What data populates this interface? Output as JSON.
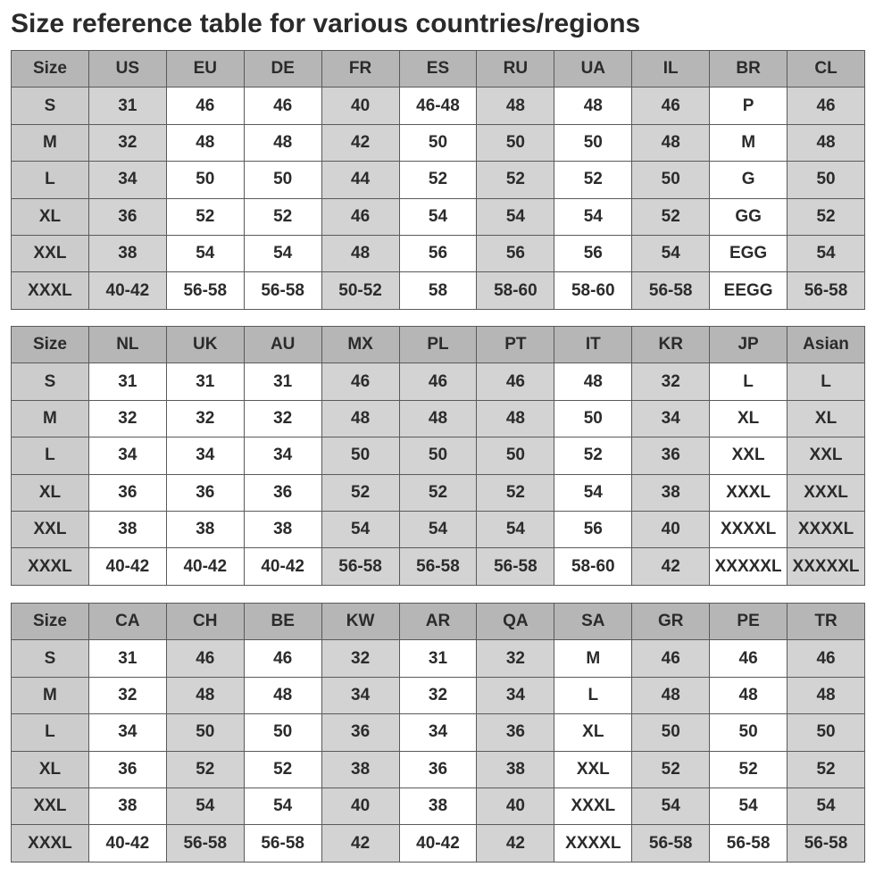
{
  "title": "Size reference table for various countries/regions",
  "colors": {
    "header_cell": "#b6b6b6",
    "gray_cell": "#d3d3d3",
    "white_cell": "#ffffff",
    "border": "#5a5a5a",
    "text": "#2b2b2b"
  },
  "tables": [
    {
      "columns": [
        "Size",
        "US",
        "EU",
        "DE",
        "FR",
        "ES",
        "RU",
        "UA",
        "IL",
        "BR",
        "CL"
      ],
      "rows": [
        [
          "S",
          "31",
          "46",
          "46",
          "40",
          "46-48",
          "48",
          "48",
          "46",
          "P",
          "46"
        ],
        [
          "M",
          "32",
          "48",
          "48",
          "42",
          "50",
          "50",
          "50",
          "48",
          "M",
          "48"
        ],
        [
          "L",
          "34",
          "50",
          "50",
          "44",
          "52",
          "52",
          "52",
          "50",
          "G",
          "50"
        ],
        [
          "XL",
          "36",
          "52",
          "52",
          "46",
          "54",
          "54",
          "54",
          "52",
          "GG",
          "52"
        ],
        [
          "XXL",
          "38",
          "54",
          "54",
          "48",
          "56",
          "56",
          "56",
          "54",
          "EGG",
          "54"
        ],
        [
          "XXXL",
          "40-42",
          "56-58",
          "56-58",
          "50-52",
          "58",
          "58-60",
          "58-60",
          "56-58",
          "EEGG",
          "56-58"
        ]
      ]
    },
    {
      "columns": [
        "Size",
        "NL",
        "UK",
        "AU",
        "MX",
        "PL",
        "PT",
        "IT",
        "KR",
        "JP",
        "Asian"
      ],
      "rows": [
        [
          "S",
          "31",
          "31",
          "31",
          "46",
          "46",
          "46",
          "48",
          "32",
          "L",
          "L"
        ],
        [
          "M",
          "32",
          "32",
          "32",
          "48",
          "48",
          "48",
          "50",
          "34",
          "XL",
          "XL"
        ],
        [
          "L",
          "34",
          "34",
          "34",
          "50",
          "50",
          "50",
          "52",
          "36",
          "XXL",
          "XXL"
        ],
        [
          "XL",
          "36",
          "36",
          "36",
          "52",
          "52",
          "52",
          "54",
          "38",
          "XXXL",
          "XXXL"
        ],
        [
          "XXL",
          "38",
          "38",
          "38",
          "54",
          "54",
          "54",
          "56",
          "40",
          "XXXXL",
          "XXXXL"
        ],
        [
          "XXXL",
          "40-42",
          "40-42",
          "40-42",
          "56-58",
          "56-58",
          "56-58",
          "58-60",
          "42",
          "XXXXXL",
          "XXXXXL"
        ]
      ]
    },
    {
      "columns": [
        "Size",
        "CA",
        "CH",
        "BE",
        "KW",
        "AR",
        "QA",
        "SA",
        "GR",
        "PE",
        "TR"
      ],
      "rows": [
        [
          "S",
          "31",
          "46",
          "46",
          "32",
          "31",
          "32",
          "M",
          "46",
          "46",
          "46"
        ],
        [
          "M",
          "32",
          "48",
          "48",
          "34",
          "32",
          "34",
          "L",
          "48",
          "48",
          "48"
        ],
        [
          "L",
          "34",
          "50",
          "50",
          "36",
          "34",
          "36",
          "XL",
          "50",
          "50",
          "50"
        ],
        [
          "XL",
          "36",
          "52",
          "52",
          "38",
          "36",
          "38",
          "XXL",
          "52",
          "52",
          "52"
        ],
        [
          "XXL",
          "38",
          "54",
          "54",
          "40",
          "38",
          "40",
          "XXXL",
          "54",
          "54",
          "54"
        ],
        [
          "XXXL",
          "40-42",
          "56-58",
          "56-58",
          "42",
          "40-42",
          "42",
          "XXXXL",
          "56-58",
          "56-58",
          "56-58"
        ]
      ]
    }
  ]
}
